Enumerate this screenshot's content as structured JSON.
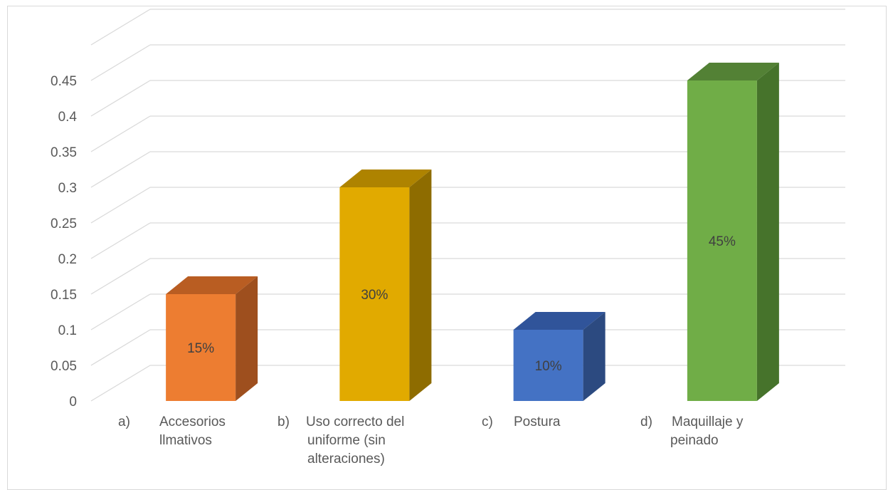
{
  "chart_data": {
    "type": "bar",
    "title": "",
    "xlabel": "",
    "ylabel": "",
    "ylim": [
      0,
      0.5
    ],
    "yticks": [
      "0",
      "0.05",
      "0.1",
      "0.15",
      "0.2",
      "0.25",
      "0.3",
      "0.35",
      "0.4",
      "0.45"
    ],
    "grid": true,
    "legend": "none",
    "bars_3d": true,
    "categories": [
      {
        "letter": "a)",
        "lines": [
          "Accesorios",
          "llmativos"
        ]
      },
      {
        "letter": "b)",
        "lines": [
          "Uso correcto del",
          "uniforme (sin",
          "alteraciones)"
        ]
      },
      {
        "letter": "c)",
        "lines": [
          "Postura"
        ]
      },
      {
        "letter": "d)",
        "lines": [
          "Maquillaje y",
          "peinado"
        ]
      }
    ],
    "values": [
      0.15,
      0.3,
      0.1,
      0.45
    ],
    "data_labels": [
      "15%",
      "30%",
      "10%",
      "45%"
    ],
    "colors": [
      {
        "front": "#ed7d31",
        "top": "#b95d22",
        "side": "#9e4f1e"
      },
      {
        "front": "#e1aa00",
        "top": "#ae8300",
        "side": "#8e6c00"
      },
      {
        "front": "#4472c4",
        "top": "#30549a",
        "side": "#2c4a80"
      },
      {
        "front": "#70ad47",
        "top": "#538135",
        "side": "#46732b"
      }
    ]
  }
}
